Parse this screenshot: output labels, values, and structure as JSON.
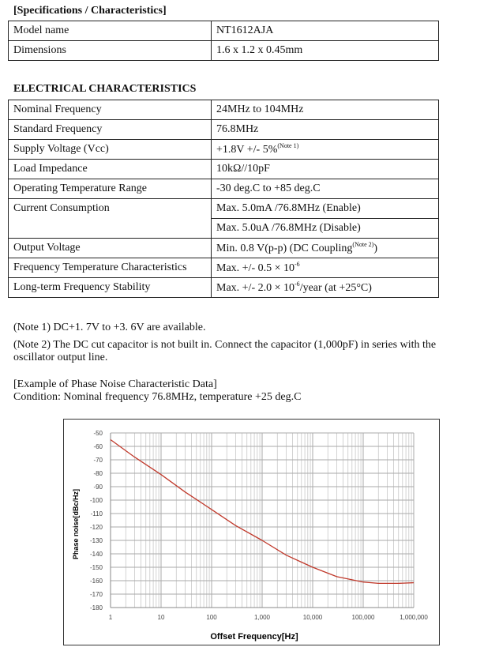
{
  "spec": {
    "heading": "[Specifications / Characteristics]",
    "rows": [
      {
        "label": "Model name",
        "value": "NT1612AJA"
      },
      {
        "label": "Dimensions",
        "value": "1.6 x 1.2 x 0.45mm"
      }
    ]
  },
  "elec": {
    "heading": "ELECTRICAL CHARACTERISTICS",
    "rows": [
      {
        "label": "Nominal Frequency",
        "value": "24MHz to 104MHz"
      },
      {
        "label": "Standard Frequency",
        "value": "76.8MHz"
      },
      {
        "label": "Supply Voltage (Vcc)",
        "value": "+1.8V +/- 5%",
        "sup": "(Note 1)"
      },
      {
        "label": "Load Impedance",
        "value": "10kΩ//10pF"
      },
      {
        "label": "Operating Temperature Range",
        "value": "-30 deg.C to +85 deg.C"
      },
      {
        "label": "Current Consumption",
        "value": "Max. 5.0mA /76.8MHz (Enable)",
        "value2": "Max. 5.0uA /76.8MHz (Disable)"
      },
      {
        "label": "Output Voltage",
        "value": "Min. 0.8 V(p-p) (DC Coupling",
        "sup": "(Note 2)",
        "after": ")"
      },
      {
        "label": "Frequency Temperature Characteristics",
        "value": "Max. +/- 0.5 × 10",
        "sup": "-6"
      },
      {
        "label": "Long-term Frequency Stability",
        "value": "Max. +/- 2.0 × 10",
        "sup": "-6",
        "after": "/year (at +25°C)"
      }
    ]
  },
  "notes": {
    "note1": "(Note 1) DC+1. 7V to +3. 6V are available.",
    "note2a": "(Note 2) The DC cut capacitor is not built in. Connect the capacitor (1,000pF) in series with the",
    "note2b": "oscillator output line."
  },
  "example": {
    "title": "[Example of Phase Noise Characteristic Data]",
    "condition": "Condition: Nominal frequency 76.8MHz, temperature +25 deg.C"
  },
  "chart_data": {
    "type": "line",
    "xlabel": "Offset Frequency[Hz]",
    "ylabel": "Phase noise[dBc/Hz]",
    "x_scale": "log",
    "xlim": [
      1,
      1000000
    ],
    "ylim": [
      -180,
      -50
    ],
    "x_ticks": [
      "1",
      "10",
      "100",
      "1,000",
      "10,000",
      "100,000",
      "1,000,000"
    ],
    "y_ticks": [
      "-50",
      "-60",
      "-70",
      "-80",
      "-90",
      "-100",
      "-110",
      "-120",
      "-130",
      "-140",
      "-150",
      "-160",
      "-170",
      "-180"
    ],
    "grid": true,
    "line_color": "#c0392b",
    "series": [
      {
        "x": [
          1,
          3,
          10,
          30,
          100,
          300,
          1000,
          3000,
          10000,
          30000,
          100000,
          200000,
          500000,
          1000000
        ],
        "y": [
          -55,
          -68,
          -81,
          -94,
          -107,
          -119,
          -130,
          -141,
          -150,
          -157,
          -161,
          -162,
          -162,
          -161.5
        ]
      }
    ]
  }
}
